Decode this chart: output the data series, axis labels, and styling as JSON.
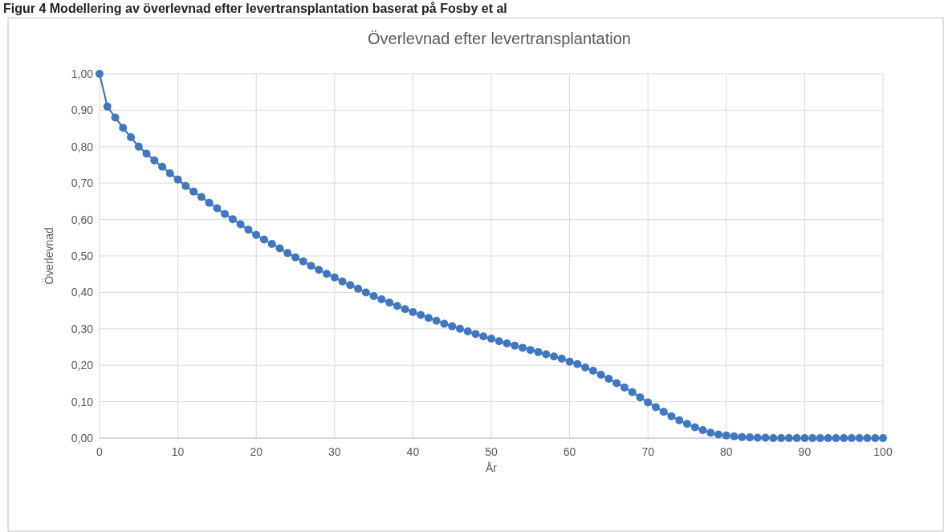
{
  "chart_data": {
    "type": "line",
    "title": "Överlevnad efter levertransplantation",
    "xlabel": "År",
    "ylabel": "Överlevnad",
    "annotations": [
      "Figur 4 Modellering av överlevnad efter levertransplantation baserat på Fosby et al"
    ],
    "x": [
      0,
      1,
      2,
      3,
      4,
      5,
      6,
      7,
      8,
      9,
      10,
      11,
      12,
      13,
      14,
      15,
      16,
      17,
      18,
      19,
      20,
      21,
      22,
      23,
      24,
      25,
      26,
      27,
      28,
      29,
      30,
      31,
      32,
      33,
      34,
      35,
      36,
      37,
      38,
      39,
      40,
      41,
      42,
      43,
      44,
      45,
      46,
      47,
      48,
      49,
      50,
      51,
      52,
      53,
      54,
      55,
      56,
      57,
      58,
      59,
      60,
      61,
      62,
      63,
      64,
      65,
      66,
      67,
      68,
      69,
      70,
      71,
      72,
      73,
      74,
      75,
      76,
      77,
      78,
      79,
      80,
      81,
      82,
      83,
      84,
      85,
      86,
      87,
      88,
      89,
      90,
      91,
      92,
      93,
      94,
      95,
      96,
      97,
      98,
      99,
      100
    ],
    "series": [
      {
        "color": "#3f78bf",
        "values": [
          1.0,
          0.91,
          0.88,
          0.852,
          0.826,
          0.8,
          0.781,
          0.762,
          0.745,
          0.727,
          0.71,
          0.692,
          0.677,
          0.662,
          0.646,
          0.631,
          0.615,
          0.601,
          0.587,
          0.572,
          0.558,
          0.545,
          0.533,
          0.521,
          0.508,
          0.496,
          0.485,
          0.473,
          0.462,
          0.451,
          0.441,
          0.43,
          0.42,
          0.41,
          0.4,
          0.39,
          0.381,
          0.372,
          0.363,
          0.354,
          0.346,
          0.338,
          0.33,
          0.322,
          0.314,
          0.307,
          0.3,
          0.293,
          0.286,
          0.279,
          0.273,
          0.266,
          0.26,
          0.254,
          0.248,
          0.242,
          0.236,
          0.23,
          0.224,
          0.218,
          0.21,
          0.203,
          0.194,
          0.185,
          0.174,
          0.163,
          0.151,
          0.139,
          0.126,
          0.112,
          0.098,
          0.085,
          0.072,
          0.06,
          0.049,
          0.039,
          0.03,
          0.022,
          0.015,
          0.01,
          0.007,
          0.005,
          0.003,
          0.002,
          0.001,
          0.001,
          0,
          0,
          0,
          0,
          0,
          0,
          0,
          0,
          0,
          0,
          0,
          0,
          0,
          0,
          0
        ]
      }
    ],
    "xlim": [
      0,
      100
    ],
    "xticks": [
      0,
      10,
      20,
      30,
      40,
      50,
      60,
      70,
      80,
      90,
      100
    ],
    "ylim": [
      0,
      1
    ],
    "yticks": [
      {
        "value": 0,
        "label": "0,00"
      },
      {
        "value": 0.1,
        "label": "0,10"
      },
      {
        "value": 0.2,
        "label": "0,20"
      },
      {
        "value": 0.3,
        "label": "0,30"
      },
      {
        "value": 0.4,
        "label": "0,40"
      },
      {
        "value": 0.5,
        "label": "0,50"
      },
      {
        "value": 0.6,
        "label": "0,60"
      },
      {
        "value": 0.7,
        "label": "0,70"
      },
      {
        "value": 0.8,
        "label": "0,80"
      },
      {
        "value": 0.9,
        "label": "0,90"
      },
      {
        "value": 1,
        "label": "1,00"
      }
    ],
    "grid": true,
    "marker": "circle"
  }
}
